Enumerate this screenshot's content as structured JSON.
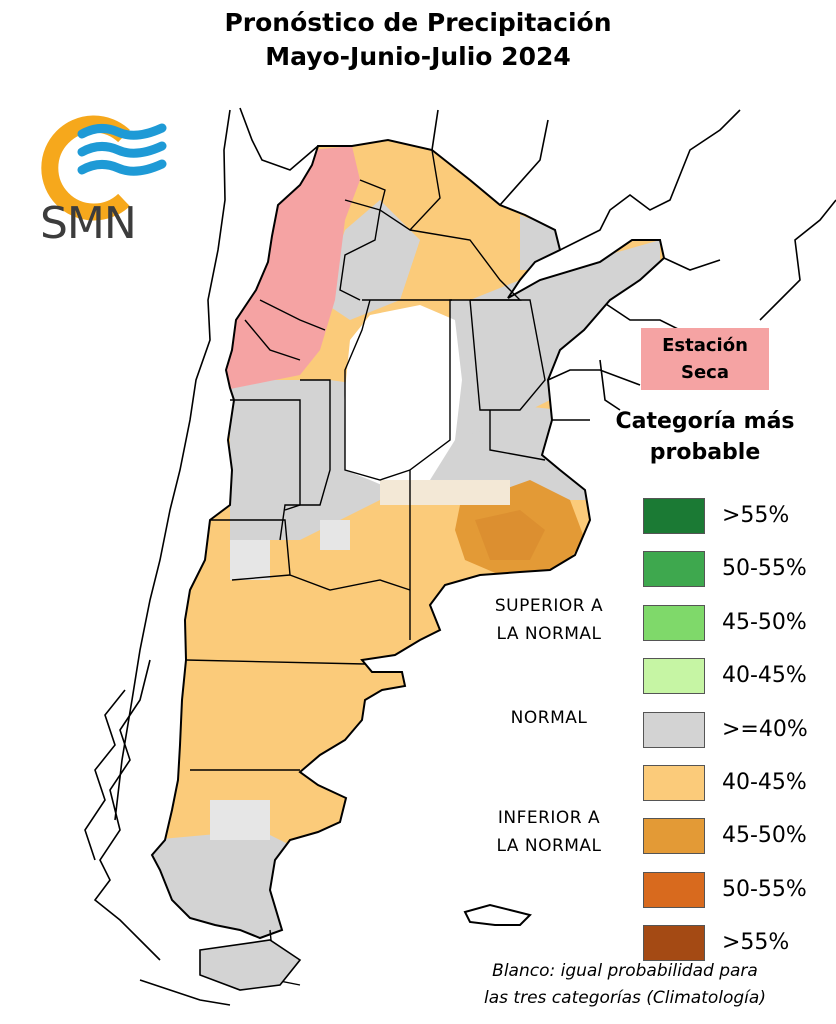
{
  "title": {
    "line1": "Pronóstico de Precipitación",
    "line2": "Mayo-Junio-Julio 2024"
  },
  "logo": {
    "text": "SMN",
    "icon": "smn-sun-wave-logo",
    "colors": {
      "sun": "#f6a81c",
      "waves": "#1e9ad6",
      "text": "#3c3c3c"
    }
  },
  "dry_season": {
    "line1": "Estación",
    "line2": "Seca",
    "color": "#f5a3a3"
  },
  "legend": {
    "title_line1": "Categoría más",
    "title_line2": "probable",
    "items": [
      {
        "label": ">55%",
        "color": "#1b7a34"
      },
      {
        "label": "50-55%",
        "color": "#3ea84e"
      },
      {
        "label": "45-50%",
        "color": "#7fd96a"
      },
      {
        "label": "40-45%",
        "color": "#c6f5a4"
      },
      {
        "label": ">=40%",
        "color": "#d3d3d3"
      },
      {
        "label": "40-45%",
        "color": "#fbcb7a"
      },
      {
        "label": "45-50%",
        "color": "#e39a36"
      },
      {
        "label": "50-55%",
        "color": "#d86a1e"
      },
      {
        "label": ">55%",
        "color": "#a44a14"
      }
    ],
    "categories": {
      "superior_line1": "SUPERIOR A",
      "superior_line2": "LA NORMAL",
      "normal": "NORMAL",
      "inferior_line1": "INFERIOR A",
      "inferior_line2": "LA NORMAL"
    }
  },
  "note": {
    "line1": "Blanco: igual probabilidad para",
    "line2": "las tres categorías (Climatología)"
  }
}
